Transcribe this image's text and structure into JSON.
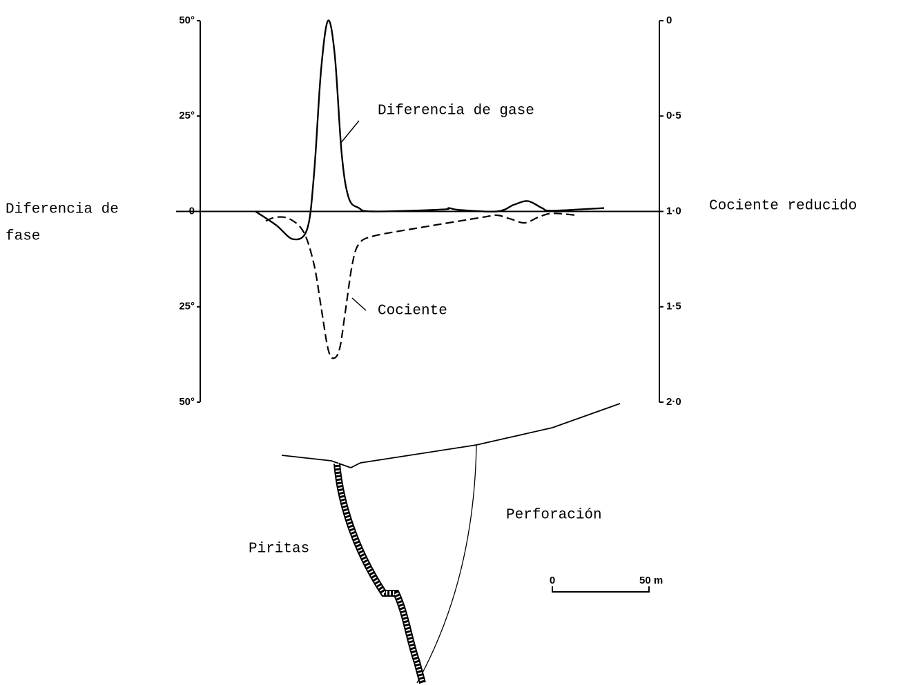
{
  "chart_data": {
    "type": "line",
    "y_label_lines": [
      "Diferencia de",
      "fase"
    ],
    "y2_label": "Cociente reducido",
    "xlim": [
      0,
      237.5
    ],
    "ylim": [
      -50,
      50
    ],
    "yticks": [
      {
        "value": 50,
        "label": "50°"
      },
      {
        "value": 25,
        "label": "25°"
      },
      0,
      {
        "value": -25,
        "label": "25°"
      },
      {
        "value": -50,
        "label": "50°"
      }
    ],
    "y2lim": [
      2.0,
      0
    ],
    "y2ticks": [
      0,
      {
        "value": 0.5,
        "label": "0·5"
      },
      {
        "value": 1.0,
        "label": "1·0"
      },
      {
        "value": 1.5,
        "label": "1·5"
      },
      {
        "value": 2.0,
        "label": "2·0"
      }
    ],
    "series": [
      {
        "name": "Diferencia de gase",
        "color": "#000000",
        "style": "solid",
        "x": [
          28.6,
          39.3,
          48.2,
          55.4,
          58.9,
          62.5,
          66.1,
          69.6,
          73.2,
          76.8,
          82.1,
          89.3,
          125,
          128.6,
          133.9,
          153.6,
          162.5,
          169.6,
          176.8,
          182.1,
          208.9
        ],
        "values": [
          0,
          -3.6,
          -7.3,
          -4.5,
          10,
          37,
          50,
          41,
          15,
          3.6,
          0.9,
          0,
          0.5,
          0.9,
          0.4,
          0,
          1.8,
          2.7,
          0.9,
          0.2,
          0.9
        ]
      },
      {
        "name": "Cociente",
        "color": "#000000",
        "style": "dashed",
        "axis": "y2",
        "x": [
          33.9,
          39.3,
          46.4,
          53.6,
          58.9,
          62.5,
          66.1,
          68.9,
          72.1,
          75,
          78.6,
          82.1,
          89.3,
          110.7,
          146.4,
          153.6,
          160.7,
          167.9,
          175,
          182.1,
          194.6
        ],
        "values": [
          1.05,
          1.03,
          1.04,
          1.11,
          1.28,
          1.5,
          1.72,
          1.77,
          1.72,
          1.53,
          1.28,
          1.17,
          1.13,
          1.09,
          1.03,
          1.02,
          1.04,
          1.06,
          1.03,
          1.01,
          1.02
        ]
      }
    ],
    "annotations": [
      "Piritas",
      "Perforación"
    ],
    "scale_bar": {
      "start_label": "0",
      "value": 50,
      "label": "50 m"
    }
  }
}
